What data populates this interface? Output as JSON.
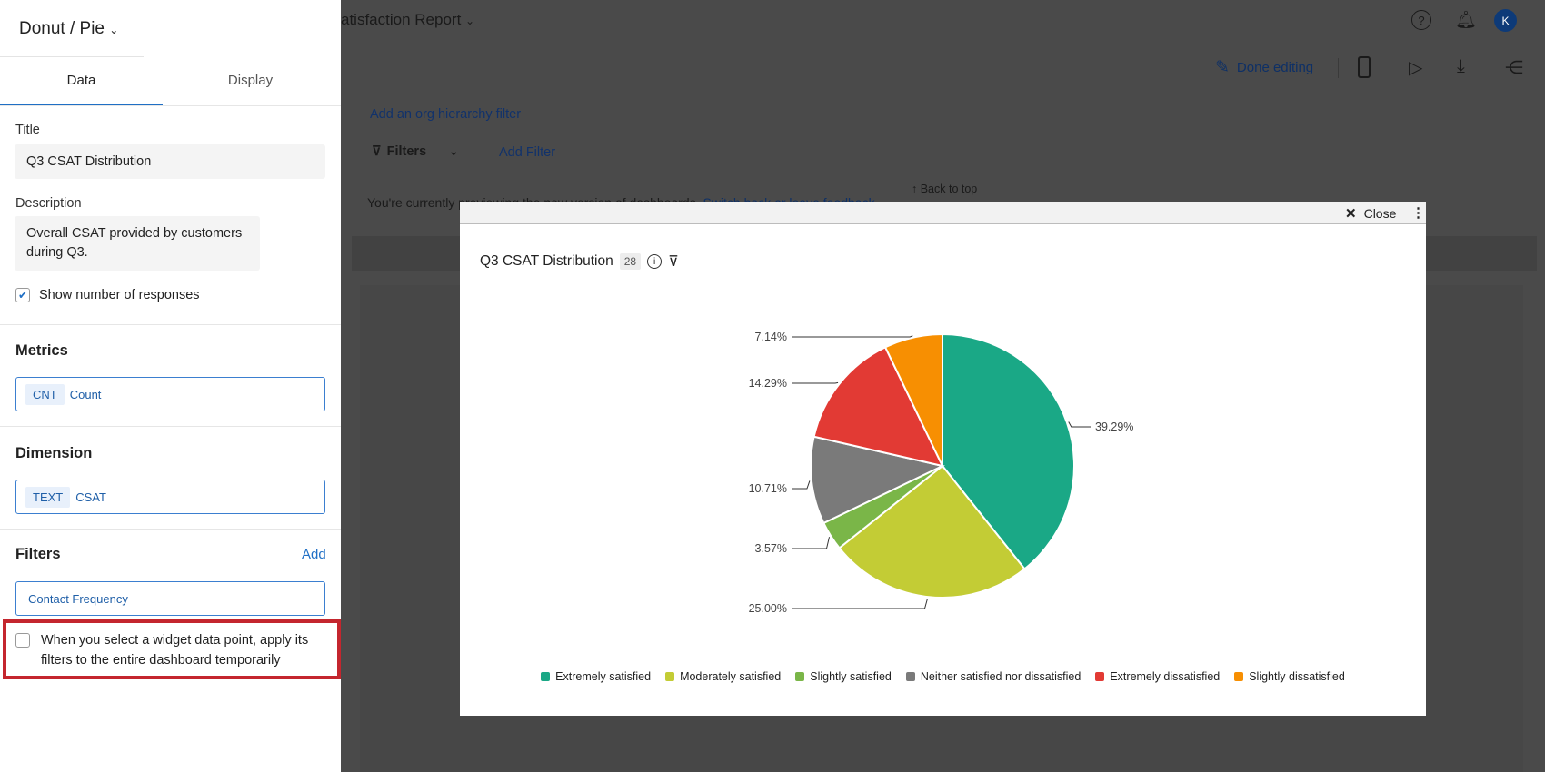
{
  "sidebar": {
    "chart_type": "Donut / Pie",
    "tabs": [
      "Data",
      "Display"
    ],
    "title_label": "Title",
    "title_value": "Q3 CSAT Distribution",
    "description_label": "Description",
    "description_value": "Overall CSAT provided by customers during Q3.",
    "show_responses_label": "Show number of responses",
    "show_responses_checked": true,
    "metrics_heading": "Metrics",
    "metric_tag": "CNT",
    "metric_value": "Count",
    "dimension_heading": "Dimension",
    "dimension_tag": "TEXT",
    "dimension_value": "CSAT",
    "filters_heading": "Filters",
    "filters_add": "Add",
    "filter_value": "Contact Frequency",
    "apply_filters_label": "When you select a widget data point, apply its filters to the entire dashboard temporarily",
    "apply_filters_checked": false
  },
  "topbar": {
    "title": "atisfaction Report",
    "done_editing": "Done editing",
    "avatar": "K"
  },
  "page": {
    "org_filter_link": "Add an org hierarchy filter",
    "filters_label": "Filters",
    "add_filter": "Add Filter",
    "back_to_top": "↑ Back to top",
    "preview_notice": "You're currently previewing the new version of dashboards.",
    "preview_links": "Switch back or leave feedback"
  },
  "modal": {
    "close": "Close",
    "widget_title": "Q3 CSAT Distribution",
    "response_count": "28"
  },
  "chart_data": {
    "type": "pie",
    "title": "Q3 CSAT Distribution",
    "categories": [
      "Extremely satisfied",
      "Moderately satisfied",
      "Slightly satisfied",
      "Neither satisfied nor dissatisfied",
      "Extremely dissatisfied",
      "Slightly dissatisfied"
    ],
    "values": [
      39.29,
      25.0,
      3.57,
      10.71,
      14.29,
      7.14
    ],
    "labels": [
      "39.29%",
      "25.00%",
      "3.57%",
      "10.71%",
      "14.29%",
      "7.14%"
    ],
    "colors": [
      "#1aa886",
      "#c3cc35",
      "#7ab648",
      "#7a7a7a",
      "#e23a34",
      "#f78f02"
    ],
    "legend": "bottom"
  }
}
